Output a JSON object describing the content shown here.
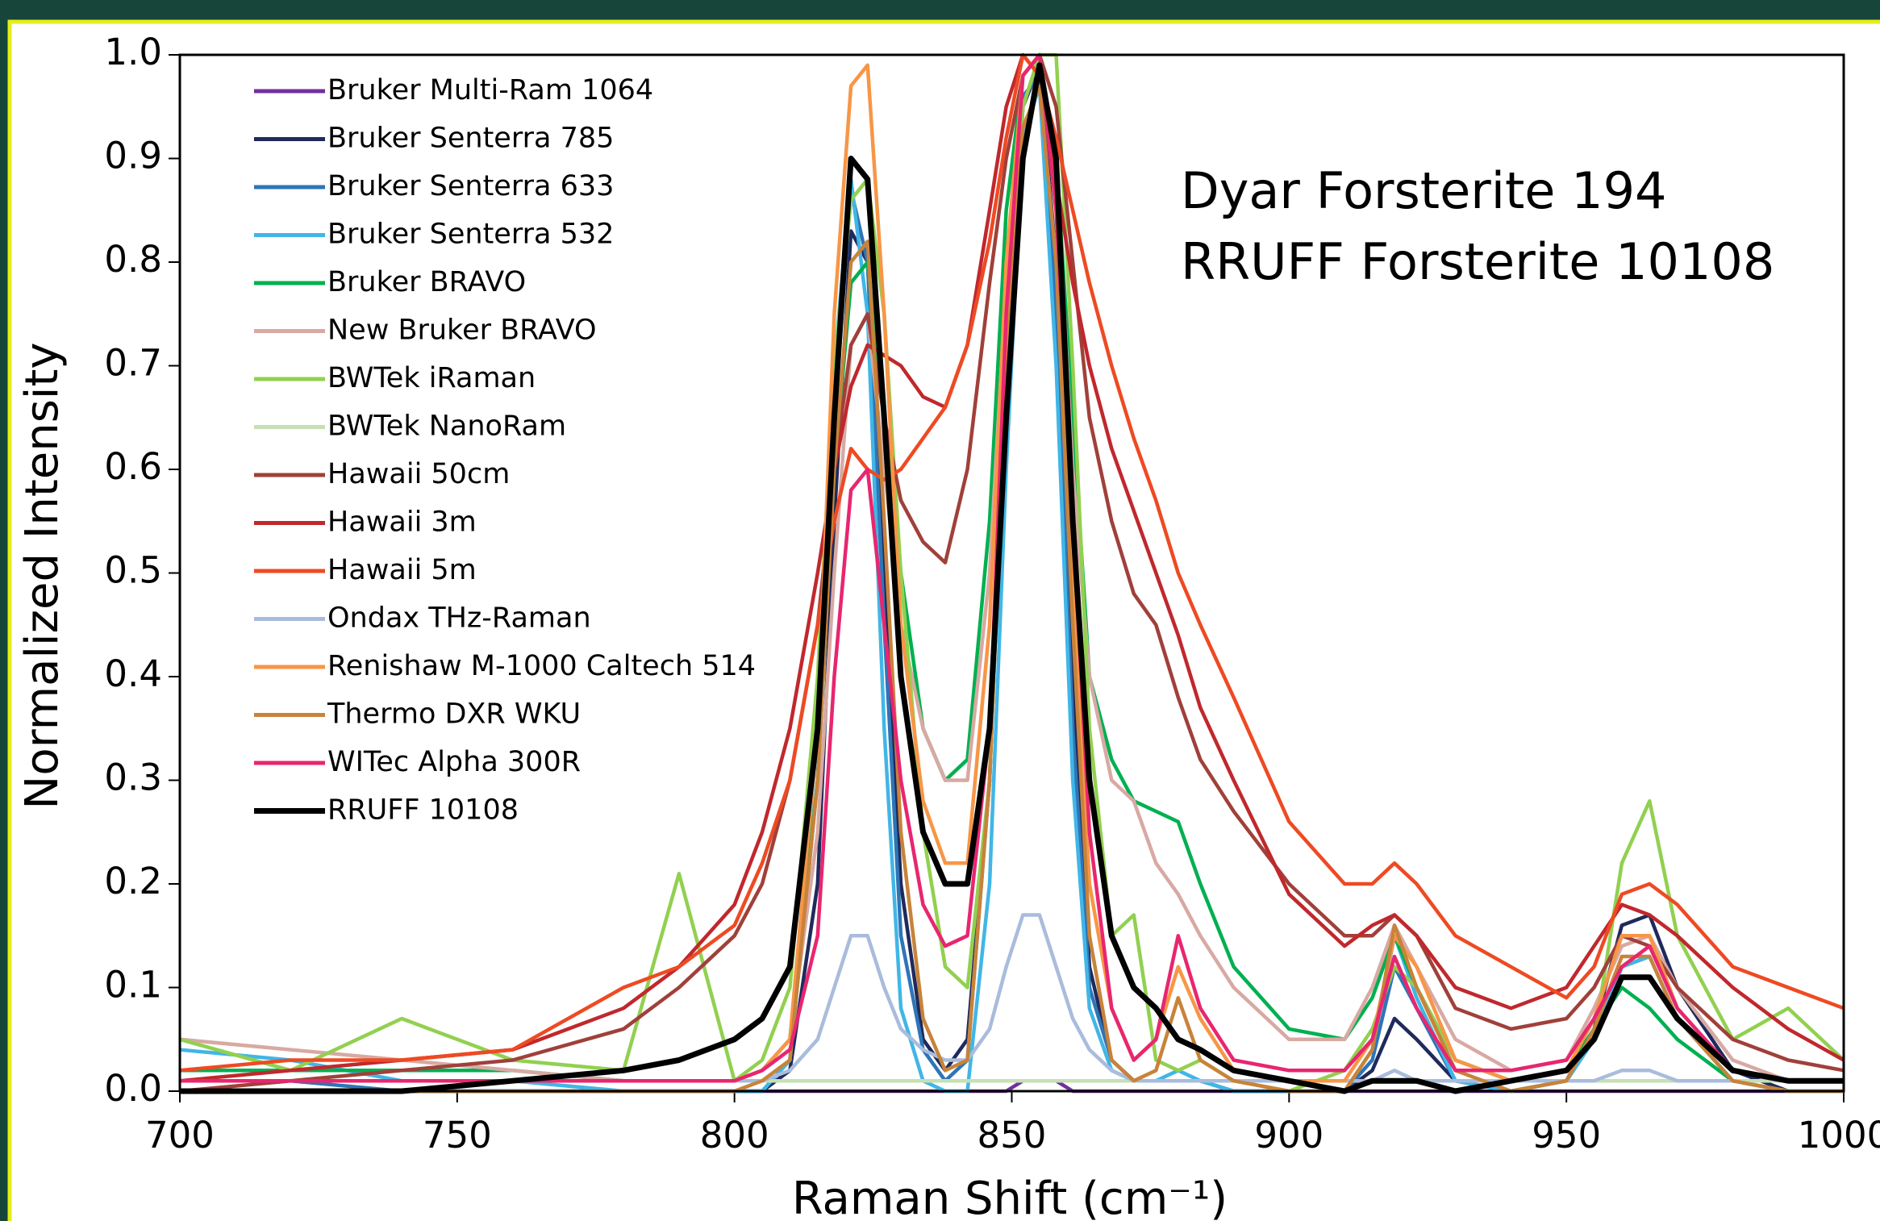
{
  "chart_data": {
    "type": "line",
    "x_label": "Raman Shift (cm⁻¹)",
    "y_label": "Normalized Intensity",
    "annotations": [
      "Dyar Forsterite 194",
      "RRUFF Forsterite 10108"
    ],
    "xlim": [
      700,
      1000
    ],
    "ylim": [
      0,
      1
    ],
    "xticks": [
      700,
      750,
      800,
      850,
      900,
      950,
      1000
    ],
    "yticks": [
      {
        "value": 0,
        "label": "0.0"
      },
      0.1,
      0.2,
      0.3,
      0.4,
      0.5,
      0.6,
      0.7,
      0.8,
      0.9,
      {
        "value": 1,
        "label": "1.0"
      }
    ],
    "legend": "upper left",
    "x": [
      700,
      720,
      740,
      760,
      780,
      790,
      800,
      805,
      810,
      815,
      818,
      821,
      824,
      827,
      830,
      834,
      838,
      842,
      846,
      849,
      852,
      855,
      858,
      861,
      864,
      868,
      872,
      876,
      880,
      884,
      890,
      900,
      910,
      915,
      919,
      923,
      930,
      940,
      950,
      955,
      960,
      965,
      970,
      980,
      990,
      1000
    ],
    "series": [
      {
        "name": "Bruker Multi-Ram 1064",
        "color": "#7030a0",
        "values": [
          0,
          0,
          0,
          0,
          0,
          0,
          0,
          0,
          0,
          0,
          0,
          0,
          0,
          0,
          0,
          0,
          0,
          0,
          0,
          0,
          0.01,
          0.01,
          0.01,
          0,
          0,
          0,
          0,
          0,
          0,
          0,
          0,
          0,
          0,
          0,
          0,
          0,
          0,
          0,
          0,
          0,
          0,
          0,
          0,
          0,
          0,
          0
        ]
      },
      {
        "name": "Bruker Senterra 785",
        "color": "#1f2a5c",
        "values": [
          0,
          0,
          0,
          0,
          0,
          0,
          0,
          0,
          0.02,
          0.2,
          0.55,
          0.83,
          0.8,
          0.5,
          0.2,
          0.05,
          0.02,
          0.05,
          0.3,
          0.7,
          0.95,
          0.99,
          0.8,
          0.4,
          0.12,
          0.03,
          0.01,
          0.01,
          0.01,
          0.01,
          0,
          0,
          0,
          0.02,
          0.07,
          0.05,
          0.01,
          0,
          0.01,
          0.06,
          0.16,
          0.17,
          0.1,
          0.02,
          0,
          0
        ]
      },
      {
        "name": "Bruker Senterra 633",
        "color": "#2e75b6",
        "values": [
          0.01,
          0.01,
          0,
          0,
          0,
          0,
          0,
          0,
          0.03,
          0.3,
          0.65,
          0.87,
          0.8,
          0.45,
          0.15,
          0.04,
          0.01,
          0.03,
          0.3,
          0.72,
          0.96,
          0.98,
          0.75,
          0.35,
          0.1,
          0.03,
          0.01,
          0.01,
          0.01,
          0.01,
          0,
          0,
          0,
          0.03,
          0.12,
          0.08,
          0.01,
          0,
          0.01,
          0.05,
          0.12,
          0.13,
          0.07,
          0.01,
          0,
          0
        ]
      },
      {
        "name": "Bruker Senterra 532",
        "color": "#41b6e6",
        "values": [
          0.04,
          0.03,
          0.01,
          0.01,
          0,
          0,
          0,
          0,
          0.03,
          0.35,
          0.7,
          0.88,
          0.75,
          0.35,
          0.08,
          0.01,
          0,
          0,
          0.2,
          0.6,
          0.92,
          0.97,
          0.7,
          0.3,
          0.08,
          0.02,
          0.01,
          0.01,
          0.02,
          0.01,
          0,
          0,
          0,
          0.04,
          0.15,
          0.09,
          0.01,
          0,
          0.01,
          0.05,
          0.12,
          0.13,
          0.07,
          0.01,
          0,
          0
        ]
      },
      {
        "name": "Bruker BRAVO",
        "color": "#00b050",
        "values": [
          0.02,
          0.02,
          0.02,
          0.02,
          0.01,
          0.01,
          0.01,
          0.02,
          0.05,
          0.3,
          0.6,
          0.78,
          0.8,
          0.65,
          0.5,
          0.35,
          0.3,
          0.32,
          0.55,
          0.85,
          0.98,
          1.0,
          0.9,
          0.65,
          0.4,
          0.32,
          0.28,
          0.27,
          0.26,
          0.2,
          0.12,
          0.06,
          0.05,
          0.09,
          0.15,
          0.1,
          0.03,
          0.01,
          0.02,
          0.06,
          0.1,
          0.08,
          0.05,
          0.01,
          0,
          0
        ]
      },
      {
        "name": "New Bruker BRAVO",
        "color": "#d8a9a3",
        "values": [
          0.05,
          0.04,
          0.03,
          0.02,
          0.01,
          0.01,
          0.01,
          0.02,
          0.05,
          0.25,
          0.5,
          0.72,
          0.75,
          0.6,
          0.45,
          0.35,
          0.3,
          0.3,
          0.5,
          0.78,
          0.95,
          1.0,
          0.9,
          0.6,
          0.4,
          0.3,
          0.28,
          0.22,
          0.19,
          0.15,
          0.1,
          0.05,
          0.05,
          0.1,
          0.16,
          0.12,
          0.05,
          0.02,
          0.03,
          0.08,
          0.14,
          0.15,
          0.1,
          0.03,
          0.01,
          0.01
        ]
      },
      {
        "name": "BWTek iRaman",
        "color": "#92d050",
        "values": [
          0.05,
          0.02,
          0.07,
          0.03,
          0.02,
          0.21,
          0.01,
          0.03,
          0.1,
          0.4,
          0.7,
          0.86,
          0.88,
          0.75,
          0.5,
          0.25,
          0.12,
          0.1,
          0.3,
          0.7,
          0.95,
          1.0,
          1.0,
          0.7,
          0.35,
          0.15,
          0.17,
          0.03,
          0.02,
          0.03,
          0.01,
          0,
          0.02,
          0.06,
          0.12,
          0.1,
          0.03,
          0.01,
          0.02,
          0.05,
          0.22,
          0.28,
          0.15,
          0.05,
          0.08,
          0.03
        ]
      },
      {
        "name": "BWTek NanoRam",
        "color": "#c5e0b4",
        "values": [
          0.01,
          0.01,
          0.01,
          0.01,
          0.01,
          0.01,
          0.01,
          0.01,
          0.01,
          0.01,
          0.01,
          0.01,
          0.01,
          0.01,
          0.01,
          0.01,
          0.01,
          0.01,
          0.01,
          0.01,
          0.01,
          0.01,
          0.01,
          0.01,
          0.01,
          0.01,
          0.01,
          0.01,
          0.01,
          0.01,
          0.01,
          0.01,
          0.01,
          0.01,
          0.01,
          0.01,
          0.01,
          0.01,
          0.01,
          0.01,
          0.01,
          0.01,
          0.01,
          0.01,
          0.01,
          0.01
        ]
      },
      {
        "name": "Hawaii 50cm",
        "color": "#a0403a",
        "values": [
          0,
          0.01,
          0.02,
          0.03,
          0.06,
          0.1,
          0.15,
          0.2,
          0.3,
          0.45,
          0.6,
          0.72,
          0.75,
          0.65,
          0.57,
          0.53,
          0.51,
          0.6,
          0.78,
          0.9,
          0.98,
          1.0,
          0.95,
          0.8,
          0.65,
          0.55,
          0.48,
          0.45,
          0.38,
          0.32,
          0.27,
          0.2,
          0.15,
          0.15,
          0.17,
          0.15,
          0.08,
          0.06,
          0.07,
          0.1,
          0.15,
          0.14,
          0.1,
          0.05,
          0.03,
          0.02
        ]
      },
      {
        "name": "Hawaii 3m",
        "color": "#c0282d",
        "values": [
          0.01,
          0.02,
          0.03,
          0.04,
          0.08,
          0.12,
          0.18,
          0.25,
          0.35,
          0.5,
          0.6,
          0.68,
          0.72,
          0.71,
          0.7,
          0.67,
          0.66,
          0.72,
          0.85,
          0.95,
          1.0,
          0.98,
          0.88,
          0.78,
          0.7,
          0.62,
          0.56,
          0.5,
          0.44,
          0.37,
          0.3,
          0.19,
          0.14,
          0.16,
          0.17,
          0.15,
          0.1,
          0.08,
          0.1,
          0.14,
          0.18,
          0.17,
          0.15,
          0.1,
          0.06,
          0.03
        ]
      },
      {
        "name": "Hawaii 5m",
        "color": "#ee4a23",
        "values": [
          0.02,
          0.03,
          0.03,
          0.04,
          0.1,
          0.12,
          0.16,
          0.22,
          0.3,
          0.45,
          0.55,
          0.62,
          0.6,
          0.59,
          0.6,
          0.63,
          0.66,
          0.72,
          0.82,
          0.92,
          1.0,
          0.98,
          0.92,
          0.85,
          0.78,
          0.7,
          0.63,
          0.57,
          0.5,
          0.45,
          0.38,
          0.26,
          0.2,
          0.2,
          0.22,
          0.2,
          0.15,
          0.12,
          0.09,
          0.12,
          0.19,
          0.2,
          0.18,
          0.12,
          0.1,
          0.08
        ]
      },
      {
        "name": "Ondax THz-Raman",
        "color": "#a9bcdc",
        "values": [
          0.01,
          0.01,
          0.01,
          0.01,
          0.01,
          0.01,
          0.01,
          0.01,
          0.02,
          0.05,
          0.1,
          0.15,
          0.15,
          0.1,
          0.06,
          0.04,
          0.03,
          0.03,
          0.06,
          0.12,
          0.17,
          0.17,
          0.12,
          0.07,
          0.04,
          0.02,
          0.01,
          0.01,
          0.01,
          0.01,
          0.01,
          0.01,
          0.01,
          0.01,
          0.02,
          0.01,
          0.01,
          0.01,
          0.01,
          0.01,
          0.02,
          0.02,
          0.01,
          0.01,
          0,
          0
        ]
      },
      {
        "name": "Renishaw M-1000 Caltech 514",
        "color": "#f79646",
        "values": [
          0.01,
          0.01,
          0.01,
          0.01,
          0.01,
          0.01,
          0.01,
          0.02,
          0.05,
          0.35,
          0.75,
          0.97,
          0.99,
          0.75,
          0.45,
          0.28,
          0.22,
          0.22,
          0.45,
          0.8,
          0.98,
          1.0,
          0.85,
          0.5,
          0.2,
          0.08,
          0.03,
          0.05,
          0.12,
          0.07,
          0.02,
          0.01,
          0.01,
          0.05,
          0.15,
          0.12,
          0.03,
          0.01,
          0.02,
          0.07,
          0.15,
          0.15,
          0.08,
          0.02,
          0.01,
          0.01
        ]
      },
      {
        "name": "Thermo DXR WKU",
        "color": "#c8833a",
        "values": [
          0,
          0,
          0,
          0,
          0,
          0,
          0,
          0.01,
          0.03,
          0.3,
          0.6,
          0.8,
          0.82,
          0.55,
          0.25,
          0.07,
          0.02,
          0.03,
          0.3,
          0.7,
          0.93,
          0.97,
          0.8,
          0.45,
          0.15,
          0.03,
          0.01,
          0.02,
          0.09,
          0.03,
          0.01,
          0,
          0,
          0.04,
          0.16,
          0.1,
          0.02,
          0,
          0.01,
          0.06,
          0.13,
          0.13,
          0.07,
          0.01,
          0,
          0
        ]
      },
      {
        "name": "WITec Alpha 300R",
        "color": "#e8266f",
        "values": [
          0.01,
          0.01,
          0.01,
          0.01,
          0.01,
          0.01,
          0.01,
          0.02,
          0.04,
          0.15,
          0.4,
          0.58,
          0.6,
          0.45,
          0.3,
          0.18,
          0.14,
          0.15,
          0.35,
          0.75,
          0.98,
          1.0,
          0.85,
          0.55,
          0.25,
          0.08,
          0.03,
          0.05,
          0.15,
          0.08,
          0.03,
          0.02,
          0.02,
          0.05,
          0.13,
          0.08,
          0.02,
          0.02,
          0.03,
          0.07,
          0.12,
          0.14,
          0.08,
          0.02,
          0.01,
          0.01
        ]
      },
      {
        "name": "RRUFF 10108",
        "color": "#000000",
        "values": [
          0,
          0,
          0,
          0.01,
          0.02,
          0.03,
          0.05,
          0.07,
          0.12,
          0.35,
          0.65,
          0.9,
          0.88,
          0.65,
          0.4,
          0.25,
          0.2,
          0.2,
          0.35,
          0.65,
          0.9,
          0.99,
          0.9,
          0.55,
          0.3,
          0.15,
          0.1,
          0.08,
          0.05,
          0.04,
          0.02,
          0.01,
          0,
          0.01,
          0.01,
          0.01,
          0,
          0.01,
          0.02,
          0.05,
          0.11,
          0.11,
          0.07,
          0.02,
          0.01,
          0.01
        ]
      }
    ]
  }
}
